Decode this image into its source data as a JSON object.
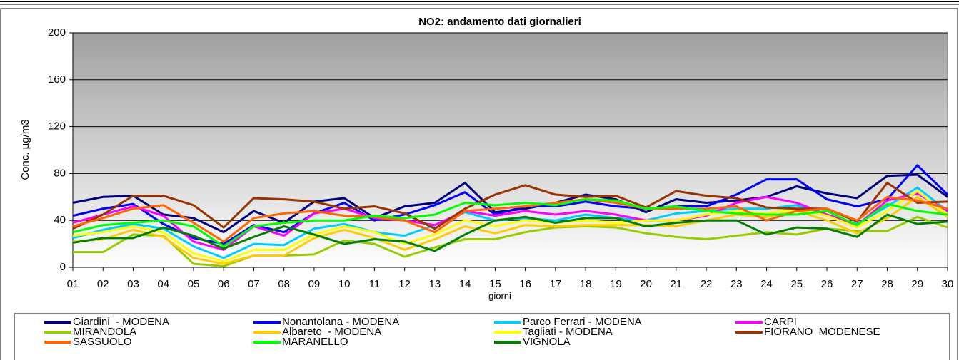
{
  "chart_data": {
    "type": "line",
    "title": "NO2: andamento dati giornalieri",
    "x_label": "giorni",
    "y_label": "Conc. µg/m3",
    "categories": [
      "01",
      "02",
      "03",
      "04",
      "05",
      "06",
      "07",
      "08",
      "09",
      "10",
      "11",
      "12",
      "13",
      "14",
      "15",
      "16",
      "17",
      "18",
      "19",
      "20",
      "21",
      "22",
      "23",
      "24",
      "25",
      "26",
      "27",
      "28",
      "29",
      "30"
    ],
    "ylim": [
      0,
      200
    ],
    "yticks": [
      0,
      40,
      80,
      120,
      160,
      200
    ],
    "grid": true,
    "series": [
      {
        "name": "Giardini  - MODENA",
        "color": "#000080",
        "values": [
          55,
          60,
          61,
          45,
          42,
          30,
          48,
          38,
          56,
          59,
          42,
          52,
          55,
          72,
          47,
          50,
          55,
          62,
          58,
          47,
          58,
          55,
          57,
          60,
          69,
          63,
          59,
          78,
          79,
          60
        ]
      },
      {
        "name": "Nonantolana - MODENA",
        "color": "#0000ff",
        "values": [
          44,
          50,
          54,
          37,
          25,
          20,
          36,
          30,
          46,
          55,
          40,
          45,
          53,
          64,
          45,
          52,
          52,
          56,
          52,
          50,
          52,
          52,
          62,
          75,
          75,
          58,
          52,
          58,
          87,
          62
        ]
      },
      {
        "name": "Parco Ferrari - MODENA",
        "color": "#00ccff",
        "values": [
          25,
          32,
          37,
          33,
          18,
          8,
          20,
          19,
          33,
          37,
          30,
          27,
          36,
          47,
          40,
          42,
          40,
          45,
          42,
          40,
          46,
          48,
          50,
          50,
          53,
          45,
          37,
          52,
          68,
          48
        ]
      },
      {
        "name": "CARPI",
        "color": "#ff00ff",
        "values": [
          38,
          45,
          52,
          44,
          22,
          15,
          35,
          27,
          46,
          50,
          42,
          40,
          36,
          48,
          44,
          48,
          45,
          48,
          45,
          40,
          40,
          44,
          55,
          60,
          55,
          45,
          36,
          57,
          63,
          48
        ]
      },
      {
        "name": "MIRANDOLA",
        "color": "#99cc00",
        "values": [
          13,
          13,
          28,
          27,
          3,
          1,
          10,
          10,
          11,
          23,
          20,
          9,
          17,
          24,
          24,
          30,
          34,
          35,
          34,
          29,
          26,
          24,
          27,
          30,
          28,
          33,
          31,
          31,
          43,
          34
        ]
      },
      {
        "name": "Albareto  - MODENA",
        "color": "#ffcc00",
        "values": [
          22,
          24,
          32,
          26,
          8,
          3,
          10,
          10,
          25,
          32,
          25,
          15,
          24,
          35,
          29,
          36,
          35,
          36,
          36,
          36,
          35,
          40,
          45,
          43,
          48,
          40,
          29,
          42,
          60,
          43
        ]
      },
      {
        "name": "Tagliati - MODENA",
        "color": "#ffff00",
        "values": [
          27,
          30,
          35,
          30,
          12,
          5,
          15,
          15,
          28,
          35,
          30,
          20,
          28,
          40,
          35,
          40,
          38,
          40,
          38,
          40,
          40,
          45,
          48,
          46,
          50,
          44,
          34,
          48,
          65,
          45
        ]
      },
      {
        "name": "FIORANO  MODENESE",
        "color": "#993300",
        "values": [
          33,
          45,
          61,
          61,
          53,
          34,
          59,
          58,
          56,
          50,
          52,
          46,
          33,
          50,
          62,
          70,
          62,
          60,
          61,
          51,
          65,
          61,
          59,
          51,
          50,
          50,
          39,
          72,
          55,
          56
        ]
      },
      {
        "name": "SASSUOLO",
        "color": "#ff6600",
        "values": [
          35,
          42,
          50,
          53,
          38,
          22,
          42,
          46,
          48,
          44,
          43,
          40,
          30,
          48,
          50,
          52,
          55,
          58,
          55,
          50,
          50,
          50,
          52,
          40,
          48,
          50,
          40,
          60,
          57,
          50
        ]
      },
      {
        "name": "MARANELLO",
        "color": "#00ff00",
        "values": [
          30,
          36,
          38,
          40,
          35,
          18,
          35,
          38,
          40,
          40,
          44,
          42,
          45,
          55,
          53,
          55,
          53,
          58,
          57,
          50,
          52,
          48,
          46,
          45,
          45,
          48,
          36,
          54,
          48,
          45
        ]
      },
      {
        "name": "VIGNOLA",
        "color": "#008000",
        "values": [
          21,
          25,
          25,
          34,
          27,
          16,
          26,
          35,
          28,
          20,
          24,
          22,
          14,
          28,
          40,
          43,
          38,
          42,
          42,
          35,
          38,
          40,
          40,
          28,
          34,
          33,
          26,
          45,
          37,
          39
        ]
      }
    ]
  }
}
